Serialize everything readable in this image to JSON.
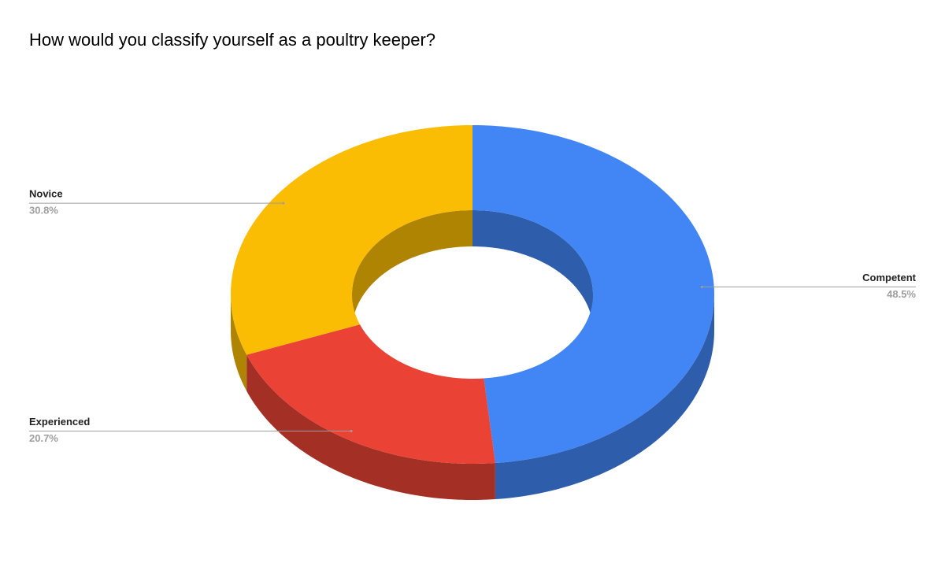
{
  "chart_data": {
    "type": "pie",
    "donut": true,
    "three_d": true,
    "title": "How would you classify yourself as a poultry keeper?",
    "categories": [
      "Competent",
      "Experienced",
      "Novice"
    ],
    "values": [
      48.5,
      20.7,
      30.8
    ],
    "value_labels": [
      "48.5%",
      "20.7%",
      "30.8%"
    ],
    "colors": [
      "#4285f4",
      "#ea4335",
      "#fbbc04"
    ]
  }
}
